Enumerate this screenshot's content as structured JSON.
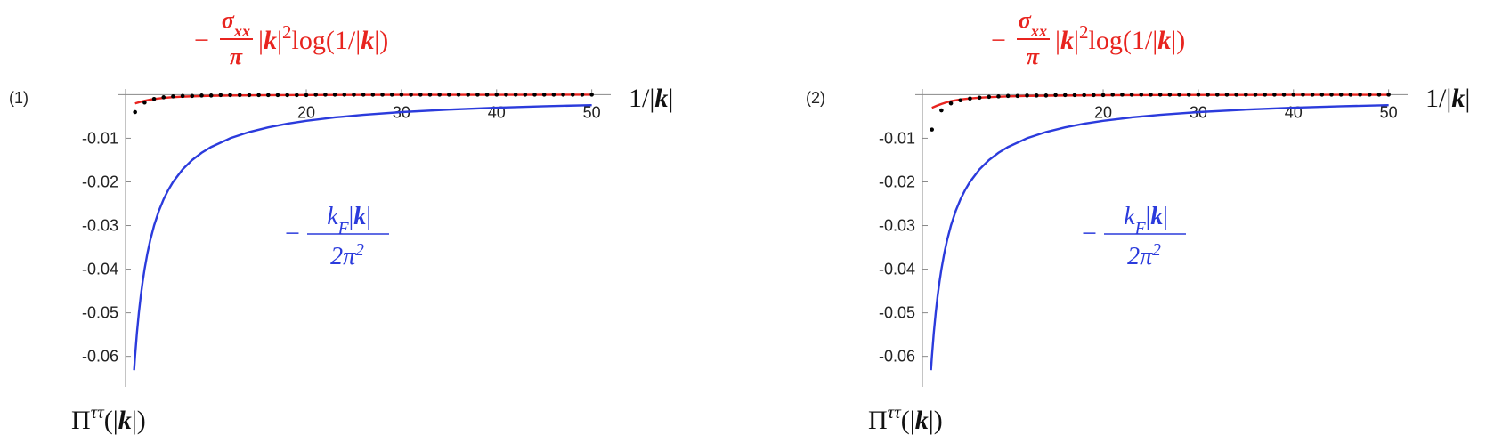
{
  "chart_data": [
    {
      "type": "line",
      "panel_label": "(1)",
      "x_label": [
        "1/|",
        "k",
        "|"
      ],
      "y_label": [
        "Π",
        "ττ",
        "(|",
        "k",
        "|)"
      ],
      "xlim": [
        1,
        52
      ],
      "ylim": [
        -0.067,
        0.0013
      ],
      "xticks": [
        20,
        30,
        40,
        50
      ],
      "yticks": [
        -0.01,
        -0.02,
        -0.03,
        -0.04,
        -0.05,
        -0.06
      ],
      "red_label": {
        "sign": "−",
        "numerator": [
          "σ",
          "xx"
        ],
        "denominator": "π",
        "tail": [
          "|",
          "k",
          "|",
          "2",
          "log(1/|",
          "k",
          "|)"
        ]
      },
      "blue_label": {
        "sign": "−",
        "numerator": [
          "k",
          "F",
          "|",
          "k",
          "|"
        ],
        "denominator": [
          "2π",
          "2"
        ]
      },
      "series": [
        {
          "mode": "line",
          "color": "#2b3bdc",
          "x": [
            1.9,
            2,
            2.2,
            2.4,
            2.6,
            2.8,
            3,
            3.3,
            3.6,
            4,
            4.5,
            5,
            5.5,
            6,
            7,
            8,
            9,
            10,
            12,
            14,
            16,
            18,
            20,
            23,
            26,
            30,
            35,
            40,
            45,
            50
          ],
          "values": [
            -0.06316,
            -0.06,
            -0.05455,
            -0.05,
            -0.04615,
            -0.04286,
            -0.04,
            -0.03636,
            -0.03333,
            -0.03,
            -0.02667,
            -0.024,
            -0.02182,
            -0.02,
            -0.01714,
            -0.015,
            -0.01333,
            -0.012,
            -0.01,
            -0.00857,
            -0.0075,
            -0.00667,
            -0.006,
            -0.00522,
            -0.00462,
            -0.004,
            -0.00343,
            -0.003,
            -0.00267,
            -0.0024
          ]
        },
        {
          "mode": "line",
          "color": "#e8241f",
          "x": [
            2,
            2.5,
            3,
            3.5,
            4,
            5,
            6,
            7,
            8,
            10,
            12,
            15,
            20,
            30,
            40,
            50
          ],
          "values": [
            -0.00201,
            -0.0017,
            -0.00142,
            -0.00119,
            -0.001,
            -0.00075,
            -0.00058,
            -0.00046,
            -0.00038,
            -0.00027,
            -0.0002,
            -0.00014,
            -9e-05,
            -4e-05,
            -3e-05,
            -2e-05
          ]
        },
        {
          "mode": "markers",
          "color": "#000000",
          "x": [
            2,
            3,
            4,
            5,
            6,
            7,
            8,
            9,
            10,
            11,
            12,
            13,
            14,
            15,
            16,
            17,
            18,
            19,
            20,
            21,
            22,
            23,
            24,
            25,
            26,
            27,
            28,
            29,
            30,
            31,
            32,
            33,
            34,
            35,
            36,
            37,
            38,
            39,
            40,
            41,
            42,
            43,
            44,
            45,
            46,
            47,
            48,
            49,
            50
          ],
          "values": [
            -0.004,
            -0.0018,
            -0.001,
            -0.0006,
            -0.0004,
            -0.0003,
            -0.0003,
            -0.0002,
            -0.0002,
            -0.0001,
            -0.0001,
            -0.0001,
            -0.0001,
            -0.0001,
            -0.0001,
            -0.0001,
            -0.0001,
            -0.0001,
            -0.0001,
            0,
            0,
            0,
            0,
            0,
            0,
            0,
            0,
            0,
            0,
            0,
            0,
            0,
            0,
            0,
            0,
            0,
            0,
            0,
            0,
            0,
            0,
            0,
            0,
            0,
            0,
            0,
            0,
            0,
            0
          ]
        }
      ]
    },
    {
      "type": "line",
      "panel_label": "(2)",
      "x_label": [
        "1/|",
        "k",
        "|"
      ],
      "y_label": [
        "Π",
        "ττ",
        "(|",
        "k",
        "|)"
      ],
      "xlim": [
        1,
        52
      ],
      "ylim": [
        -0.067,
        0.0013
      ],
      "xticks": [
        20,
        30,
        40,
        50
      ],
      "yticks": [
        -0.01,
        -0.02,
        -0.03,
        -0.04,
        -0.05,
        -0.06
      ],
      "red_label": {
        "sign": "−",
        "numerator": [
          "σ",
          "xx"
        ],
        "denominator": "π",
        "tail": [
          "|",
          "k",
          "|",
          "2",
          "log(1/|",
          "k",
          "|)"
        ]
      },
      "blue_label": {
        "sign": "−",
        "numerator": [
          "k",
          "F",
          "|",
          "k",
          "|"
        ],
        "denominator": [
          "2π",
          "2"
        ]
      },
      "series": [
        {
          "mode": "line",
          "color": "#2b3bdc",
          "x": [
            1.9,
            2,
            2.2,
            2.4,
            2.6,
            2.8,
            3,
            3.3,
            3.6,
            4,
            4.5,
            5,
            5.5,
            6,
            7,
            8,
            9,
            10,
            12,
            14,
            16,
            18,
            20,
            23,
            26,
            30,
            35,
            40,
            45,
            50
          ],
          "values": [
            -0.06316,
            -0.06,
            -0.05455,
            -0.05,
            -0.04615,
            -0.04286,
            -0.04,
            -0.03636,
            -0.03333,
            -0.03,
            -0.02667,
            -0.024,
            -0.02182,
            -0.02,
            -0.01714,
            -0.015,
            -0.01333,
            -0.012,
            -0.01,
            -0.00857,
            -0.0075,
            -0.00667,
            -0.006,
            -0.00522,
            -0.00462,
            -0.004,
            -0.00343,
            -0.003,
            -0.00267,
            -0.0024
          ]
        },
        {
          "mode": "line",
          "color": "#e8241f",
          "x": [
            2,
            2.5,
            3,
            3.5,
            4,
            5,
            6,
            7,
            8,
            10,
            12,
            15,
            20,
            30,
            40,
            50
          ],
          "values": [
            -0.00302,
            -0.00255,
            -0.00213,
            -0.00178,
            -0.0015,
            -0.00112,
            -0.00087,
            -0.00069,
            -0.00057,
            -0.0004,
            -0.0003,
            -0.00021,
            -0.00013,
            -7e-05,
            -4e-05,
            -3e-05
          ]
        },
        {
          "mode": "markers",
          "color": "#000000",
          "x": [
            2,
            3,
            4,
            5,
            6,
            7,
            8,
            9,
            10,
            11,
            12,
            13,
            14,
            15,
            16,
            17,
            18,
            19,
            20,
            21,
            22,
            23,
            24,
            25,
            26,
            27,
            28,
            29,
            30,
            31,
            32,
            33,
            34,
            35,
            36,
            37,
            38,
            39,
            40,
            41,
            42,
            43,
            44,
            45,
            46,
            47,
            48,
            49,
            50
          ],
          "values": [
            -0.008,
            -0.0036,
            -0.002,
            -0.0013,
            -0.0009,
            -0.0007,
            -0.0005,
            -0.0004,
            -0.0003,
            -0.0003,
            -0.0002,
            -0.0002,
            -0.0002,
            -0.0001,
            -0.0001,
            -0.0001,
            -0.0001,
            -0.0001,
            -0.0001,
            0,
            0,
            0,
            0,
            0,
            0,
            0,
            0,
            0,
            0,
            0,
            0,
            0,
            0,
            0,
            0,
            0,
            0,
            0,
            0,
            0,
            0,
            0,
            0,
            0,
            0,
            0,
            0,
            0,
            0
          ]
        }
      ]
    }
  ]
}
